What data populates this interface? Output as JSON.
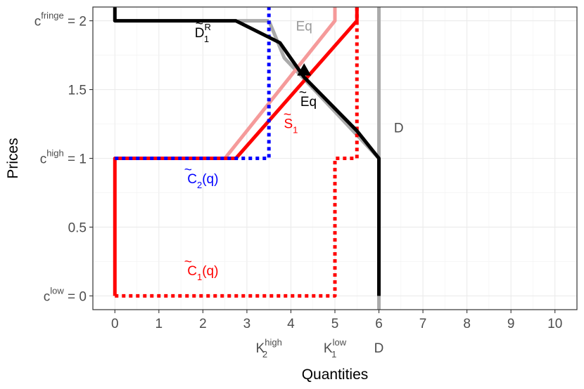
{
  "chart_data": {
    "type": "line",
    "xlabel": "Quantities",
    "ylabel": "Prices",
    "xlim": [
      -0.5,
      10.5
    ],
    "ylim": [
      -0.1,
      2.1
    ],
    "grid": true,
    "x_ticks": [
      "0",
      "1",
      "2",
      "3",
      "4",
      "5",
      "6",
      "7",
      "8",
      "9",
      "10"
    ],
    "y_ticks": [
      {
        "value": 0,
        "main": "c",
        "sup": "low",
        "suffix": " = 0"
      },
      {
        "value": 0.5,
        "main": "0.5",
        "sup": "",
        "suffix": ""
      },
      {
        "value": 1,
        "main": "c",
        "sup": "high",
        "suffix": " = 1"
      },
      {
        "value": 1.5,
        "main": "1.5",
        "sup": "",
        "suffix": ""
      },
      {
        "value": 2,
        "main": "c",
        "sup": "fringe",
        "suffix": " = 2"
      }
    ],
    "extra_x_labels": [
      {
        "x": 3.5,
        "main": "K",
        "sub": "2",
        "sup": "high"
      },
      {
        "x": 5,
        "main": "K",
        "sub": "1",
        "sup": "low"
      },
      {
        "x": 6,
        "main": "D",
        "sub": "",
        "sup": ""
      }
    ],
    "series": [
      {
        "key": "demand",
        "color": "#aaaaaa",
        "width": 5,
        "dash": "",
        "x": [
          6,
          6
        ],
        "y": [
          -0.1,
          2.1
        ]
      },
      {
        "key": "eq_residual",
        "color": "#aaaaaa",
        "width": 5,
        "dash": "",
        "x": [
          3.5,
          3.85,
          6
        ],
        "y": [
          2,
          1.73,
          1.0
        ]
      },
      {
        "key": "fringe_top",
        "color": "#aaaaaa",
        "width": 5,
        "dash": "",
        "x": [
          2.8,
          3.5
        ],
        "y": [
          2,
          2
        ]
      },
      {
        "key": "s1_light",
        "color": "#f59a9a",
        "width": 5,
        "dash": "",
        "x": [
          2.5,
          5.0,
          5.0
        ],
        "y": [
          1,
          2,
          2.1
        ]
      },
      {
        "key": "s1",
        "color": "#ff0000",
        "width": 5,
        "dash": "",
        "x": [
          0,
          0,
          2.75,
          5.5,
          5.5
        ],
        "y": [
          0,
          1,
          1,
          2,
          2.1
        ]
      },
      {
        "key": "c2",
        "color": "#0000ff",
        "width": 5,
        "dash": "5,5",
        "x": [
          0,
          3.5,
          3.5
        ],
        "y": [
          1,
          1,
          2.1
        ]
      },
      {
        "key": "c1",
        "color": "#ff0000",
        "width": 5,
        "dash": "5,5",
        "x": [
          0,
          5,
          5,
          5.5,
          5.5
        ],
        "y": [
          0,
          0,
          1,
          1,
          2.1
        ]
      },
      {
        "key": "d1r",
        "color": "#000000",
        "width": 5,
        "dash": "",
        "x": [
          0,
          0,
          2.75,
          3.75,
          4.3,
          5.5,
          6,
          6
        ],
        "y": [
          2.1,
          2,
          2,
          1.84,
          1.59,
          1.2,
          1,
          0
        ]
      }
    ],
    "markers": [
      {
        "x": 4.3,
        "y": 1.64,
        "shape": "triangle",
        "color": "#000000"
      }
    ],
    "annotations": [
      {
        "x": 2.0,
        "y": 1.88,
        "main": "D",
        "tilde": true,
        "sub": "1",
        "sup": "R",
        "color": "#000000"
      },
      {
        "x": 4.3,
        "y": 1.93,
        "main": "Eq",
        "tilde": false,
        "sub": "",
        "sup": "",
        "color": "#999999"
      },
      {
        "x": 4.4,
        "y": 1.38,
        "main": "Eq",
        "tilde": true,
        "sub": "",
        "sup": "",
        "color": "#000000"
      },
      {
        "x": 4.0,
        "y": 1.22,
        "main": "S",
        "tilde": true,
        "sub": "1",
        "sup": "",
        "color": "#ff0000"
      },
      {
        "x": 6.45,
        "y": 1.19,
        "main": "D",
        "tilde": false,
        "sub": "",
        "sup": "",
        "color": "#4d4d4d"
      },
      {
        "x": 2.0,
        "y": 0.82,
        "main": "C",
        "tilde": true,
        "sub": "2",
        "sup": "",
        "rest": "(q)",
        "color": "#0000ff"
      },
      {
        "x": 2.0,
        "y": 0.15,
        "main": "C",
        "tilde": true,
        "sub": "1",
        "sup": "",
        "rest": "(q)",
        "color": "#ff0000"
      }
    ]
  }
}
